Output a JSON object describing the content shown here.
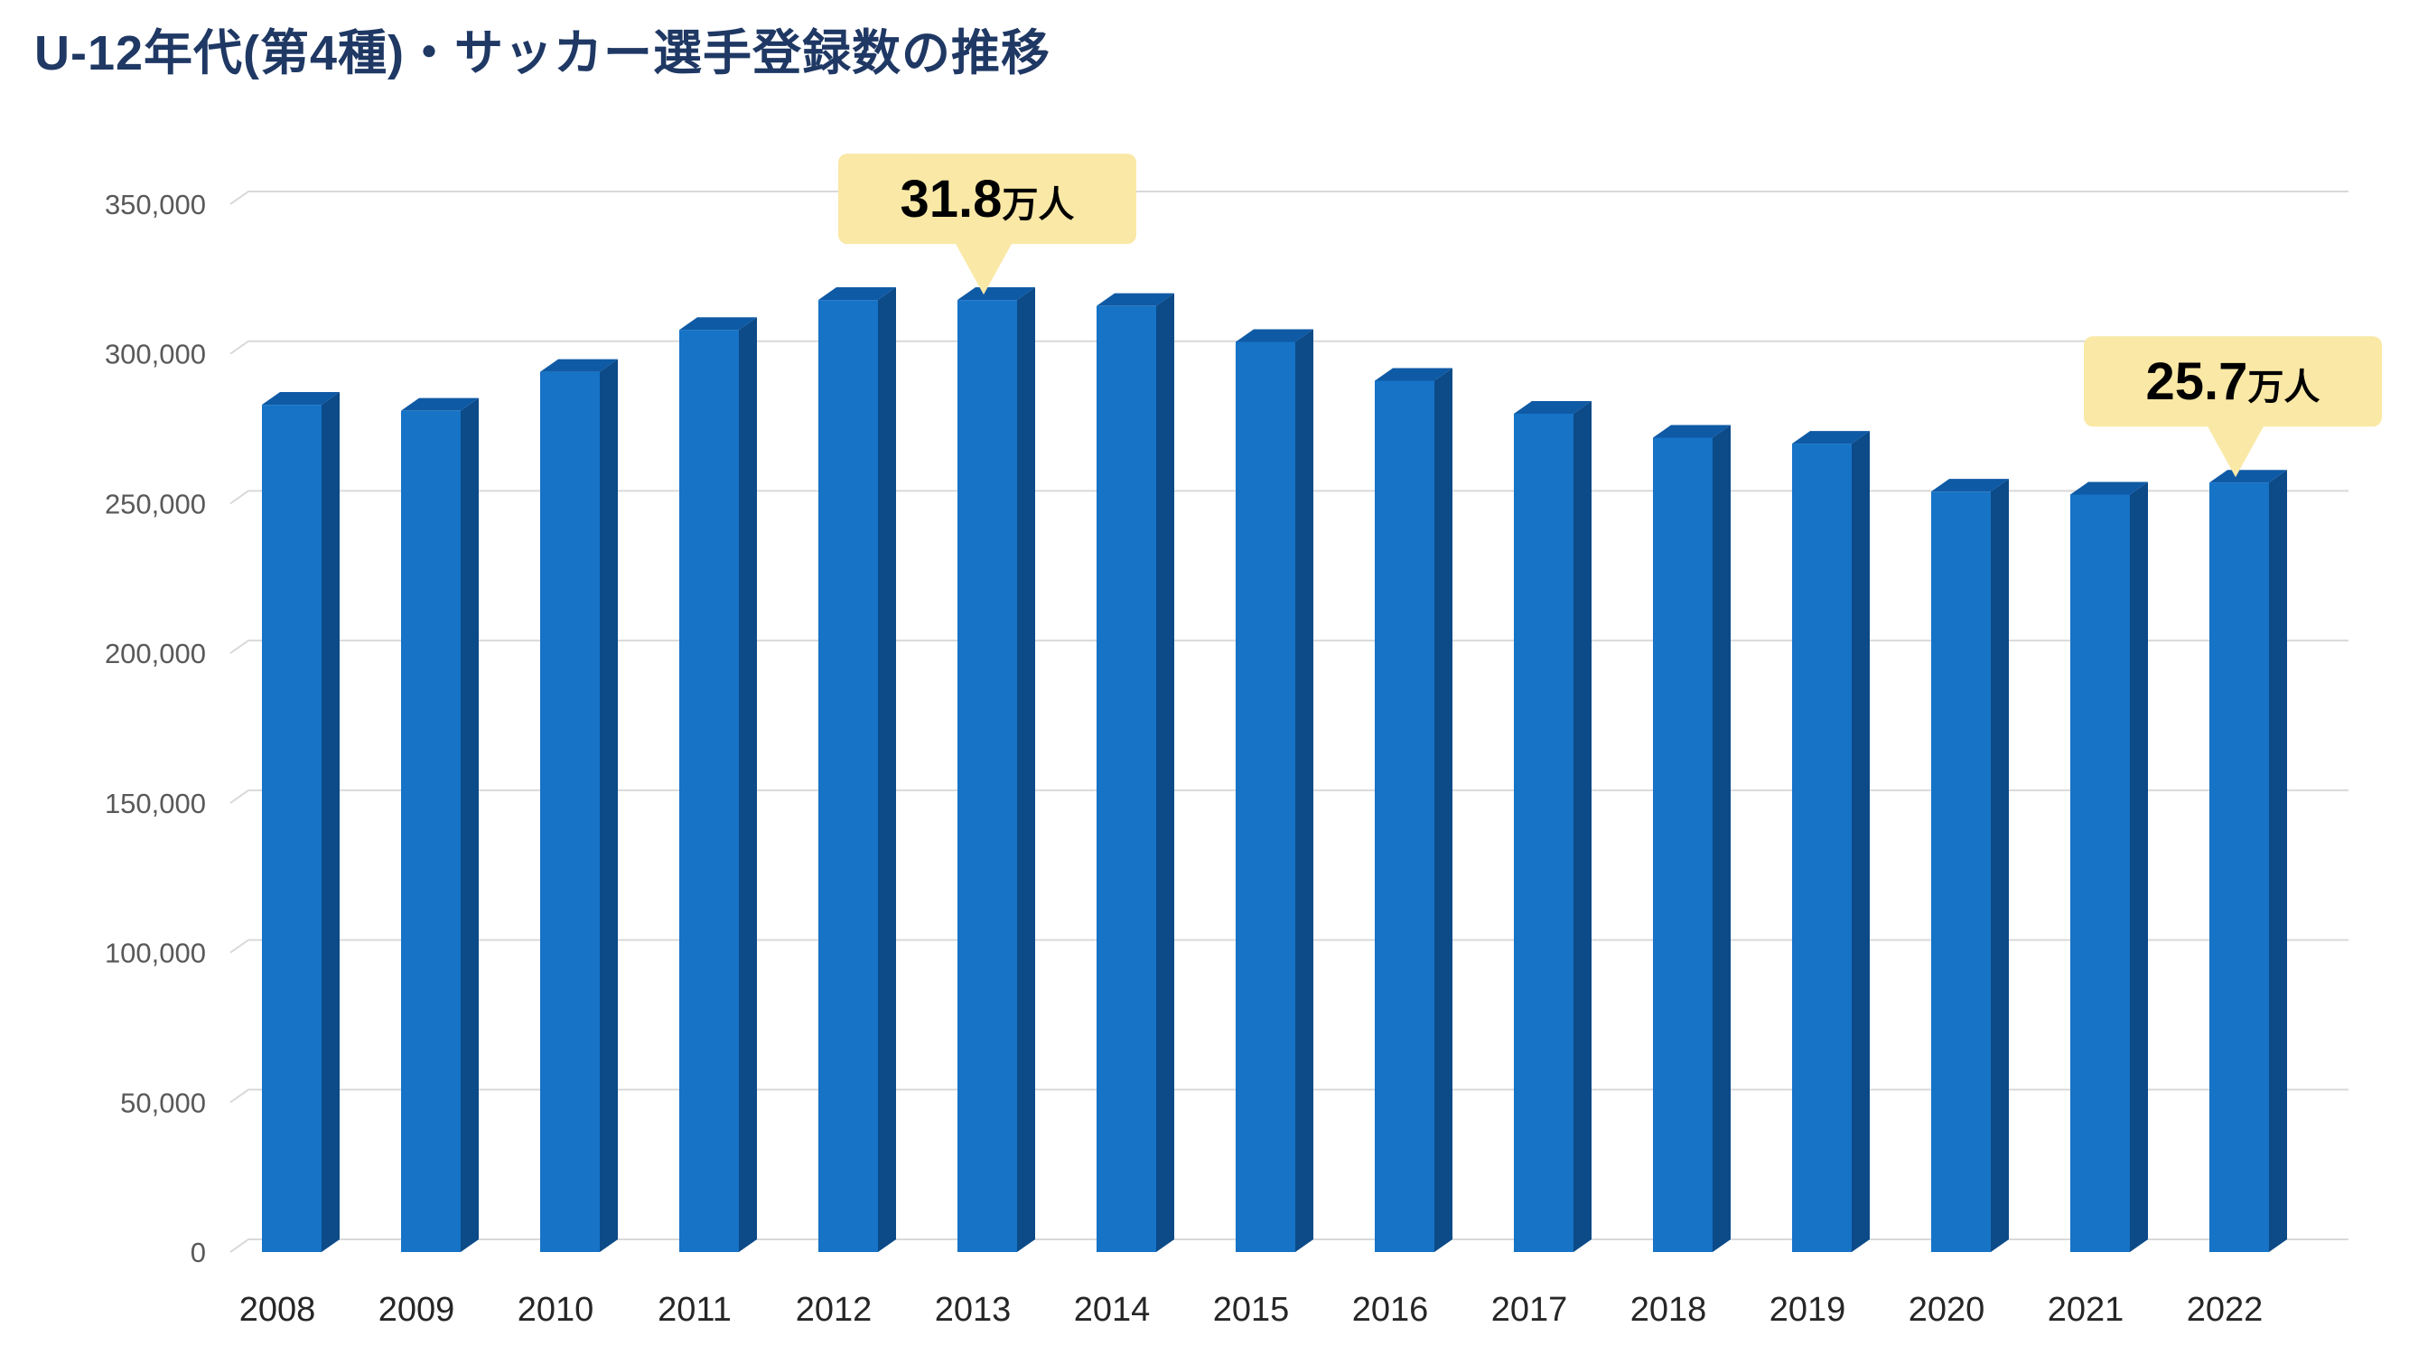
{
  "header": {
    "title": "U-12年代(第4種)・サッカー選手登録数の推移",
    "title_color": "#1F3864"
  },
  "chart_data": {
    "type": "bar",
    "style": "3d-column",
    "title": "U-12年代(第4種)・サッカー選手登録数の推移",
    "categories": [
      "2008",
      "2009",
      "2010",
      "2011",
      "2012",
      "2013",
      "2014",
      "2015",
      "2016",
      "2017",
      "2018",
      "2019",
      "2020",
      "2021",
      "2022"
    ],
    "values": [
      283000,
      281000,
      294000,
      308000,
      318000,
      318000,
      316000,
      304000,
      291000,
      280000,
      272000,
      270000,
      254000,
      253000,
      257000
    ],
    "xlabel": "",
    "ylabel": "",
    "ylim": [
      0,
      350000
    ],
    "ytick_interval": 50000,
    "ytick_labels": [
      "0",
      "50,000",
      "100,000",
      "150,000",
      "200,000",
      "250,000",
      "300,000",
      "350,000"
    ],
    "grid": true,
    "legend": false,
    "annotations": [
      {
        "category": "2013",
        "value_label": "31.8",
        "unit_label": "万人"
      },
      {
        "category": "2022",
        "value_label": "25.7",
        "unit_label": "万人"
      }
    ],
    "colors": {
      "bar_front": "#1673C6",
      "bar_top": "#0F5AA5",
      "bar_side": "#0C4A88",
      "gridline": "#D9D9D9",
      "y_label": "#595959",
      "x_label": "#262626",
      "callout_bg": "#FAE8A6",
      "callout_text": "#000000"
    }
  }
}
